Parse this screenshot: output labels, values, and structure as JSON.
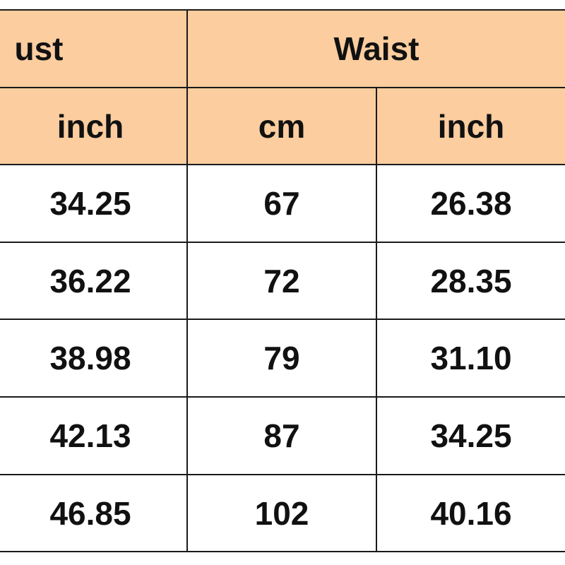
{
  "table": {
    "header": {
      "groups": [
        "ust",
        "Waist"
      ],
      "units": [
        "inch",
        "cm",
        "inch"
      ]
    },
    "rows": [
      [
        "34.25",
        "67",
        "26.38"
      ],
      [
        "36.22",
        "72",
        "28.35"
      ],
      [
        "38.98",
        "79",
        "31.10"
      ],
      [
        "42.13",
        "87",
        "34.25"
      ],
      [
        "46.85",
        "102",
        "40.16"
      ]
    ]
  }
}
